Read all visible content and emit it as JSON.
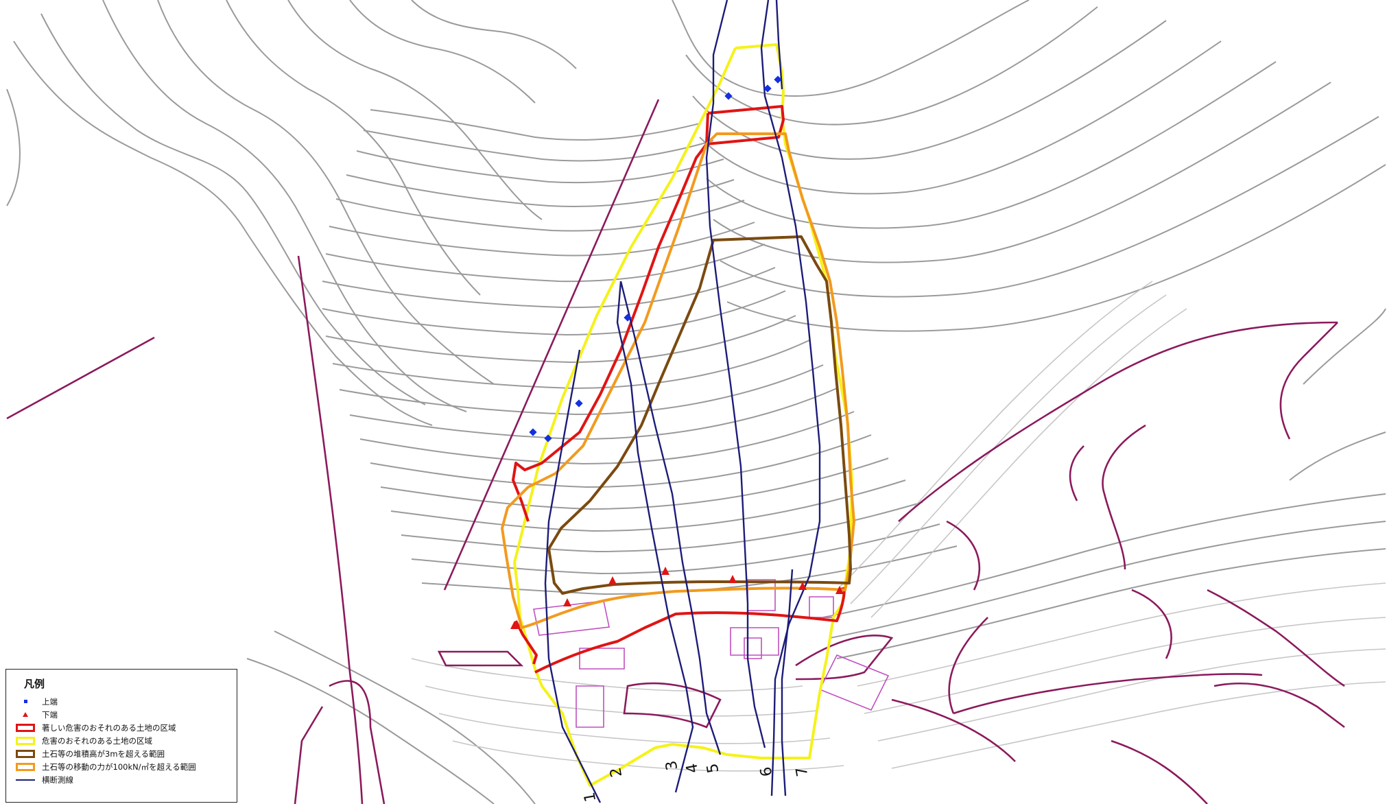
{
  "legend": {
    "title": "凡例",
    "items": [
      {
        "label": "上端",
        "symbol": "square",
        "color": "#1530e0"
      },
      {
        "label": "下端",
        "symbol": "triangle",
        "color": "#e01414"
      },
      {
        "label": "著しい危害のおそれのある土地の区域",
        "symbol": "box",
        "color": "#e01414"
      },
      {
        "label": "危害のおそれのある土地の区域",
        "symbol": "box",
        "color": "#f5f21a"
      },
      {
        "label": "土石等の堆積高が3mを超える範囲",
        "symbol": "box",
        "color": "#7a4a10"
      },
      {
        "label": "土石等の移動の力が100kN/㎡を超える範囲",
        "symbol": "box",
        "color": "#f29a1e"
      },
      {
        "label": "横断測線",
        "symbol": "line",
        "color": "#1c1c78"
      }
    ]
  },
  "section_labels": [
    "1",
    "2",
    "3",
    "4",
    "5",
    "6",
    "7"
  ]
}
